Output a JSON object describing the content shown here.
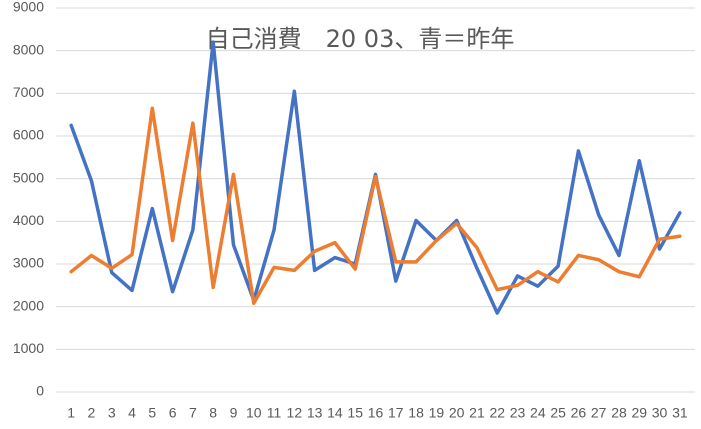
{
  "chart_data": {
    "type": "line",
    "title": "自己消費　20 03、青＝昨年",
    "categories": [
      "1",
      "2",
      "3",
      "4",
      "5",
      "6",
      "7",
      "8",
      "9",
      "10",
      "11",
      "12",
      "13",
      "14",
      "15",
      "16",
      "17",
      "18",
      "19",
      "20",
      "21",
      "22",
      "23",
      "24",
      "25",
      "26",
      "27",
      "28",
      "29",
      "30",
      "31"
    ],
    "series": [
      {
        "color": "#4472c4",
        "values": [
          6250,
          4950,
          2800,
          2380,
          4300,
          2350,
          3800,
          8200,
          3450,
          2150,
          3800,
          7050,
          2850,
          3150,
          3000,
          5100,
          2600,
          4020,
          3550,
          4020,
          2900,
          1850,
          2720,
          2480,
          2950,
          5650,
          4150,
          3200,
          5420,
          3350,
          4200
        ]
      },
      {
        "color": "#ed7d31",
        "values": [
          2820,
          3200,
          2900,
          3220,
          6650,
          3550,
          6300,
          2450,
          5100,
          2080,
          2920,
          2850,
          3300,
          3500,
          2880,
          5050,
          3050,
          3050,
          3550,
          3950,
          3380,
          2400,
          2500,
          2820,
          2580,
          3200,
          3100,
          2820,
          2700,
          3580,
          3650
        ]
      }
    ],
    "ylim": [
      0,
      9000
    ],
    "yticks": [
      0,
      1000,
      2000,
      3000,
      4000,
      5000,
      6000,
      7000,
      8000,
      9000
    ],
    "grid": true
  }
}
